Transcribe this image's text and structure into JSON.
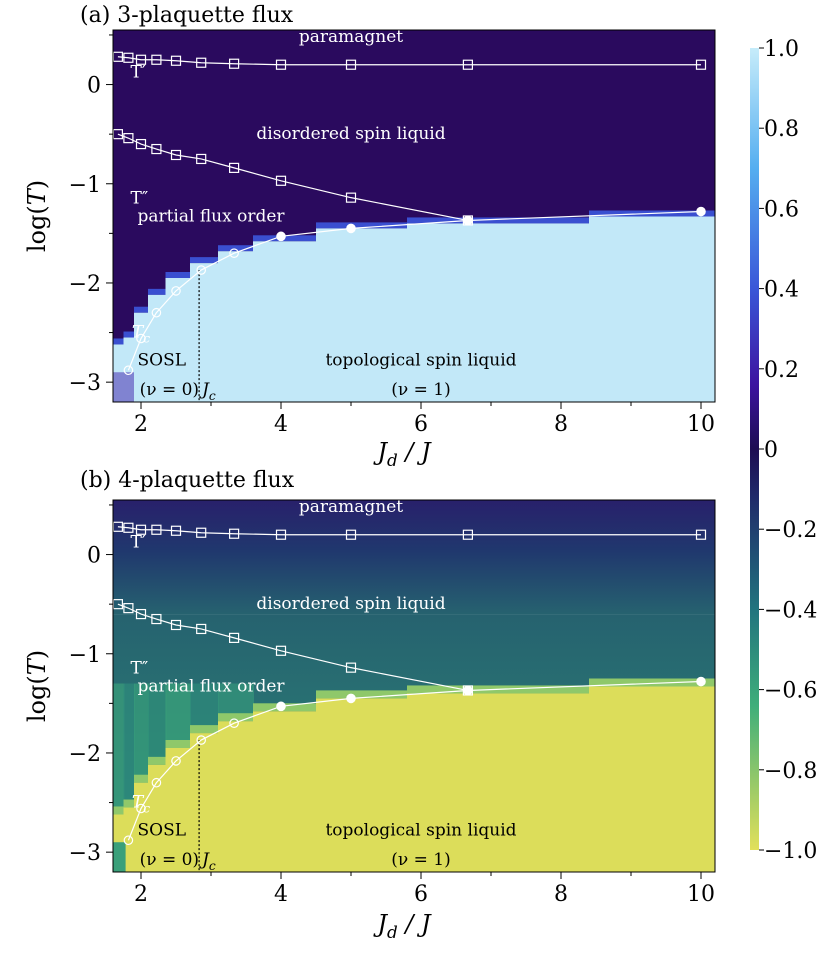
{
  "chart_data": [
    {
      "type": "heatmap",
      "title": "(a) 3-plaquette flux",
      "xlabel": "J_d / J",
      "ylabel": "log(T)",
      "xlim": [
        1.6,
        10.2
      ],
      "ylim": [
        -3.2,
        0.55
      ],
      "xticks": [
        "2",
        "4",
        "6",
        "8",
        "10"
      ],
      "yticks": [
        "0",
        "−1",
        "−2",
        "−3"
      ],
      "colormap": "ordered (dark purple → light cyan)",
      "series": [
        {
          "name": "T′",
          "marker": "square-open",
          "x": [
            1.67,
            1.82,
            2.0,
            2.22,
            2.5,
            2.86,
            3.33,
            4.0,
            5.0,
            6.67,
            10.0
          ],
          "y": [
            0.28,
            0.27,
            0.25,
            0.25,
            0.24,
            0.22,
            0.21,
            0.2,
            0.2,
            0.2,
            0.2
          ]
        },
        {
          "name": "T″",
          "marker": "square-open",
          "x": [
            1.67,
            1.82,
            2.0,
            2.22,
            2.5,
            2.86,
            3.33,
            4.0,
            5.0,
            6.67
          ],
          "y": [
            -0.5,
            -0.54,
            -0.6,
            -0.65,
            -0.71,
            -0.75,
            -0.84,
            -0.97,
            -1.14,
            -1.37
          ]
        },
        {
          "name": "T_c",
          "marker": "circle",
          "x": [
            1.82,
            2.0,
            2.22,
            2.5,
            2.86,
            3.33,
            4.0,
            5.0,
            6.67,
            10.0
          ],
          "y": [
            -2.88,
            -2.56,
            -2.3,
            -2.08,
            -1.87,
            -1.7,
            -1.53,
            -1.45,
            -1.37,
            -1.28
          ]
        }
      ],
      "annotations": {
        "paramagnet": "paramagnet",
        "dsl": "disordered spin liquid",
        "pfo": "partial flux order",
        "tsl": "topological spin liquid",
        "sosl": "SOSL",
        "nu0": "(ν = 0)",
        "nu1": "(ν = 1)",
        "jc": "J_c",
        "tprime": "T′",
        "tdprime": "T″",
        "tc": "T_c"
      },
      "Jc": 2.83
    },
    {
      "type": "heatmap",
      "title": "(b) 4-plaquette flux",
      "xlabel": "J_d / J",
      "ylabel": "log(T)",
      "xlim": [
        1.6,
        10.2
      ],
      "ylim": [
        -3.2,
        0.55
      ],
      "xticks": [
        "2",
        "4",
        "6",
        "8",
        "10"
      ],
      "yticks": [
        "0",
        "−1",
        "−2",
        "−3"
      ],
      "colormap": "ordered (dark blue → teal → yellow)",
      "series": [
        {
          "name": "T′",
          "marker": "square-open",
          "x": [
            1.67,
            1.82,
            2.0,
            2.22,
            2.5,
            2.86,
            3.33,
            4.0,
            5.0,
            6.67,
            10.0
          ],
          "y": [
            0.28,
            0.27,
            0.25,
            0.25,
            0.24,
            0.22,
            0.21,
            0.2,
            0.2,
            0.2,
            0.2
          ]
        },
        {
          "name": "T″",
          "marker": "square-open",
          "x": [
            1.67,
            1.82,
            2.0,
            2.22,
            2.5,
            2.86,
            3.33,
            4.0,
            5.0,
            6.67
          ],
          "y": [
            -0.5,
            -0.54,
            -0.6,
            -0.65,
            -0.71,
            -0.75,
            -0.84,
            -0.97,
            -1.14,
            -1.37
          ]
        },
        {
          "name": "T_c",
          "marker": "circle",
          "x": [
            1.82,
            2.0,
            2.22,
            2.5,
            2.86,
            3.33,
            4.0,
            5.0,
            6.67,
            10.0
          ],
          "y": [
            -2.88,
            -2.56,
            -2.3,
            -2.08,
            -1.87,
            -1.7,
            -1.53,
            -1.45,
            -1.37,
            -1.28
          ]
        }
      ],
      "annotations": {
        "paramagnet": "paramagnet",
        "dsl": "disordered spin liquid",
        "pfo": "partial flux order",
        "tsl": "topological spin liquid",
        "sosl": "SOSL",
        "nu0": "(ν = 0)",
        "nu1": "(ν = 1)",
        "jc": "J_c",
        "tprime": "T′",
        "tdprime": "T″",
        "tc": "T_c"
      },
      "Jc": 2.83
    }
  ],
  "colorbar": {
    "range": [
      -1.0,
      1.0
    ],
    "ticks": [
      "1.0",
      "0.8",
      "0.6",
      "0.4",
      "0.2",
      "0",
      "−0.2",
      "−0.4",
      "−0.6",
      "−0.8",
      "−1.0"
    ],
    "values": [
      1.0,
      0.8,
      0.6,
      0.4,
      0.2,
      0,
      -0.2,
      -0.4,
      -0.6,
      -0.8,
      -1.0
    ]
  },
  "colors": {
    "dark_purple": "#2a0a5e",
    "ordered_cyan": "#c2e8f8",
    "dark_blue": "#2b1d6e",
    "teal": "#2a8c8c",
    "ordered_yellow": "#dcdd5a"
  }
}
